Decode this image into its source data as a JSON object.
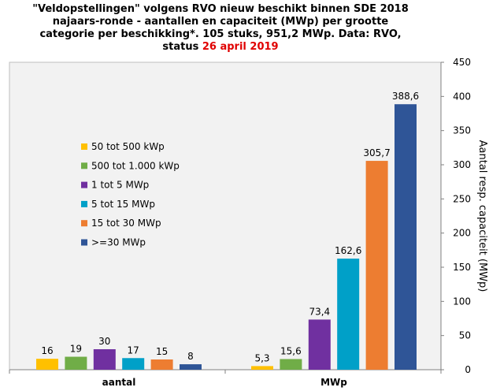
{
  "title": {
    "line1": "\"Veldopstellingen\" volgens RVO nieuw beschikt binnen SDE 2018",
    "line2": "najaars-ronde - aantallen en capaciteit (MWp) per grootte",
    "line3": "categorie per beschikking*.  105 stuks, 951,2 MWp. Data: RVO,",
    "line4_prefix": "status ",
    "line4_date": "26 april 2019",
    "date_color": "#e00000"
  },
  "chart_data": {
    "type": "bar",
    "categories": [
      "aantal",
      "MWp"
    ],
    "series": [
      {
        "name": "50 tot 500 kWp",
        "color": "#ffc000",
        "values": [
          16,
          5.3
        ],
        "labels": [
          "16",
          "5,3"
        ]
      },
      {
        "name": "500 tot 1.000 kWp",
        "color": "#70ad47",
        "values": [
          19,
          15.6
        ],
        "labels": [
          "19",
          "15,6"
        ]
      },
      {
        "name": "1 tot 5 MWp",
        "color": "#7030a0",
        "values": [
          30,
          73.4
        ],
        "labels": [
          "30",
          "73,4"
        ]
      },
      {
        "name": "5 tot 15 MWp",
        "color": "#00a0c8",
        "values": [
          17,
          162.6
        ],
        "labels": [
          "17",
          "162,6"
        ]
      },
      {
        "name": "15 tot 30 MWp",
        "color": "#ed7d31",
        "values": [
          15,
          305.7
        ],
        "labels": [
          "15",
          "305,7"
        ]
      },
      {
        "name": ">=30 MWp",
        "color": "#2f5597",
        "values": [
          8,
          388.6
        ],
        "labels": [
          "8",
          "388,6"
        ]
      }
    ],
    "ylabel": "Aantal resp. capaciteit (MWp)",
    "ylim": [
      0,
      450
    ],
    "yticks": [
      0,
      50,
      100,
      150,
      200,
      250,
      300,
      350,
      400,
      450
    ],
    "y_axis_side": "right",
    "grid": false,
    "legend_position": "left",
    "plot_background": "#f2f2f2"
  }
}
